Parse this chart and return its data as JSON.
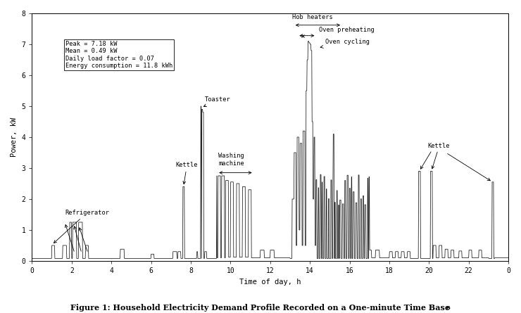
{
  "title": "Figure 1: Household Electricity Demand Profile Recorded on a One-minute Time Base",
  "xlabel": "Time of day, h",
  "ylabel": "Power, kW",
  "xlim": [
    0,
    24
  ],
  "ylim": [
    0,
    8
  ],
  "xticks_vals": [
    0,
    2,
    4,
    6,
    8,
    10,
    12,
    14,
    16,
    18,
    20,
    22,
    24
  ],
  "xticks_labels": [
    "0",
    "2",
    "4",
    "6",
    "8",
    "10",
    "12",
    "14",
    "16",
    "18",
    "20",
    "22",
    "0"
  ],
  "yticks": [
    0,
    1,
    2,
    3,
    4,
    5,
    6,
    7,
    8
  ],
  "stats_text": "Peak = 7.18 kW\nMean = 0.49 kW\nDaily load factor = 0.07\nEnergy consumption = 11.8 kWh",
  "bg_color": "#ffffff",
  "line_color": "#1a1a1a"
}
